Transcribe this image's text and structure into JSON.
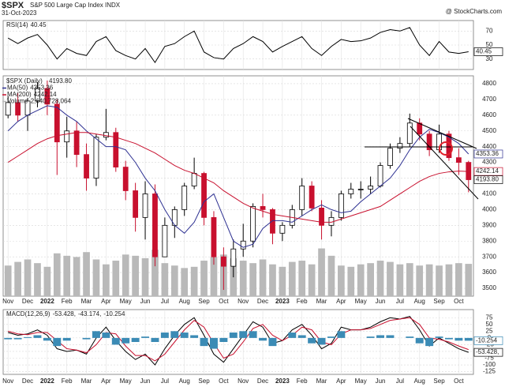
{
  "header": {
    "symbol": "$SPX",
    "name": "S&P 500 Large Cap Index INDX",
    "date": "31-Oct-2023",
    "source": "@ StockCharts.com"
  },
  "chart_data": [
    {
      "type": "line",
      "ylim": [
        15,
        85
      ],
      "yticks": [
        30,
        50,
        70
      ],
      "series": [
        {
          "name": "RSI(14)",
          "label": "40.45",
          "box": true,
          "color": "#000000",
          "values": [
            60,
            52,
            60,
            65,
            50,
            30,
            45,
            38,
            35,
            55,
            62,
            42,
            35,
            30,
            45,
            25,
            48,
            52,
            62,
            70,
            40,
            32,
            30,
            45,
            52,
            62,
            55,
            40,
            48,
            55,
            62,
            45,
            35,
            48,
            58,
            55,
            56,
            60,
            68,
            72,
            70,
            75,
            50,
            35,
            55,
            40,
            38,
            40.45
          ]
        }
      ]
    },
    {
      "type": "candlestick",
      "name": "$SPX (Daily)",
      "label": "4193.80",
      "up_color": "#000000",
      "down_color": "#c8102e",
      "categories": [
        "Nov",
        null,
        "Dec",
        null,
        "2022",
        null,
        "Feb",
        null,
        "Mar",
        null,
        "Apr",
        null,
        "May",
        null,
        "Jun",
        null,
        "Jul",
        null,
        "Aug",
        null,
        "Sep",
        null,
        "Oct",
        null,
        "Nov",
        null,
        "Dec",
        null,
        "2023",
        null,
        "Feb",
        null,
        "Mar",
        null,
        "Apr",
        null,
        "May",
        null,
        "Jun",
        null,
        "Jul",
        null,
        "Aug",
        null,
        "Sep",
        null,
        "Oct",
        null
      ],
      "open": [
        4600,
        4680,
        4600,
        4690,
        4770,
        4670,
        4430,
        4500,
        4350,
        4200,
        4460,
        4490,
        4270,
        4120,
        3950,
        4100,
        3700,
        3900,
        4000,
        4150,
        4230,
        3950,
        3700,
        3640,
        3750,
        3800,
        4020,
        4000,
        3850,
        3900,
        4000,
        4150,
        4010,
        3900,
        3950,
        4100,
        4130,
        4130,
        4150,
        4280,
        4390,
        4420,
        4550,
        4480,
        4380,
        4480,
        4330,
        4300
      ],
      "high": [
        4720,
        4740,
        4710,
        4810,
        4820,
        4700,
        4590,
        4560,
        4420,
        4480,
        4640,
        4520,
        4310,
        4170,
        4180,
        4160,
        3950,
        4020,
        4170,
        4330,
        4240,
        3990,
        3760,
        3810,
        3910,
        4040,
        4100,
        4010,
        3920,
        4030,
        4200,
        4180,
        4060,
        3990,
        4120,
        4170,
        4180,
        4210,
        4300,
        4420,
        4460,
        4610,
        4580,
        4500,
        4540,
        4500,
        4390,
        4310
      ],
      "low": [
        4580,
        4560,
        4500,
        4650,
        4600,
        4220,
        4330,
        4270,
        4120,
        4150,
        4440,
        4240,
        4060,
        3860,
        3810,
        3640,
        3700,
        3820,
        3960,
        4130,
        3900,
        3650,
        3490,
        3570,
        3700,
        3760,
        3950,
        3780,
        3800,
        3880,
        3960,
        3990,
        3810,
        3830,
        3930,
        4070,
        4070,
        4100,
        4140,
        4260,
        4360,
        4400,
        4440,
        4340,
        4360,
        4310,
        4220,
        4110
      ],
      "close": [
        4680,
        4600,
        4690,
        4770,
        4670,
        4430,
        4500,
        4350,
        4200,
        4460,
        4490,
        4270,
        4120,
        3950,
        4100,
        3700,
        3900,
        4000,
        4150,
        4230,
        3950,
        3700,
        3640,
        3750,
        3800,
        4020,
        4000,
        3850,
        3900,
        4000,
        4150,
        4010,
        3900,
        3950,
        4100,
        4130,
        4130,
        4150,
        4280,
        4390,
        4420,
        4550,
        4480,
        4380,
        4480,
        4330,
        4300,
        4190
      ],
      "ylim": [
        3450,
        4850
      ],
      "yticks": [
        3500,
        3600,
        3700,
        3800,
        3900,
        4000,
        4100,
        4200,
        4300,
        4400,
        4500,
        4600,
        4700,
        4800
      ],
      "y2lim": [
        0,
        18000000000
      ],
      "series": [
        {
          "name": "MA(50)",
          "label": "4353.36",
          "box": true,
          "color": "#2e3192",
          "type": "line",
          "values": [
            4500,
            4560,
            4600,
            4630,
            4660,
            4650,
            4600,
            4560,
            4500,
            4450,
            4400,
            4400,
            4380,
            4300,
            4200,
            4120,
            4000,
            3900,
            3850,
            3920,
            4050,
            4100,
            3950,
            3800,
            3760,
            3780,
            3880,
            3930,
            3930,
            3920,
            3960,
            4000,
            4030,
            4000,
            3980,
            3990,
            4050,
            4100,
            4150,
            4200,
            4280,
            4380,
            4460,
            4510,
            4490,
            4460,
            4420,
            4353.36
          ]
        },
        {
          "name": "MA(200)",
          "label": "4242.14",
          "box": true,
          "color": "#c8102e",
          "type": "line",
          "values": [
            4300,
            4340,
            4380,
            4420,
            4450,
            4470,
            4480,
            4490,
            4490,
            4480,
            4470,
            4460,
            4440,
            4420,
            4390,
            4360,
            4320,
            4280,
            4250,
            4230,
            4200,
            4170,
            4120,
            4080,
            4040,
            4010,
            3990,
            3970,
            3960,
            3950,
            3940,
            3930,
            3920,
            3920,
            3940,
            3960,
            3980,
            4000,
            4020,
            4060,
            4100,
            4140,
            4180,
            4210,
            4230,
            4240,
            4245,
            4242.14
          ]
        },
        {
          "name": "Volume",
          "label": "2,640,728,064",
          "color": "#b9b9b9",
          "type": "bar",
          "axis": "y2",
          "values": [
            2500000000,
            2800000000,
            3000000000,
            2700000000,
            2400000000,
            3500000000,
            3300000000,
            3200000000,
            3600000000,
            3000000000,
            2600000000,
            2900000000,
            3400000000,
            3300000000,
            3100000000,
            3800000000,
            2700000000,
            2500000000,
            2300000000,
            2400000000,
            2900000000,
            3200000000,
            3400000000,
            3100000000,
            2900000000,
            2700000000,
            3000000000,
            2600000000,
            2400000000,
            2800000000,
            2900000000,
            2600000000,
            3900000000,
            3300000000,
            2500000000,
            2400000000,
            2600000000,
            2700000000,
            2900000000,
            2800000000,
            2600000000,
            2700000000,
            2500000000,
            2600000000,
            2500000000,
            2600000000,
            2700000000,
            2640728064
          ]
        }
      ]
    },
    {
      "type": "line",
      "ylim": [
        -135,
        105
      ],
      "yticks": [
        75,
        50,
        25,
        0,
        -25,
        -50,
        -75,
        -100,
        -125
      ],
      "series": [
        {
          "name": "MACD(12,26,9)",
          "label": "-53.428,",
          "box": true,
          "color": "#000000",
          "type": "line",
          "values": [
            20,
            10,
            15,
            30,
            10,
            -40,
            -50,
            -45,
            -60,
            0,
            40,
            -10,
            -50,
            -80,
            -60,
            -100,
            -40,
            10,
            50,
            75,
            10,
            -60,
            -90,
            -40,
            10,
            60,
            40,
            -20,
            -10,
            30,
            50,
            10,
            -40,
            -20,
            40,
            30,
            30,
            40,
            60,
            75,
            70,
            80,
            30,
            -30,
            0,
            -20,
            -40,
            -53.428
          ]
        },
        {
          "label": "-43.174,",
          "color": "#c8102e",
          "type": "line",
          "values": [
            25,
            15,
            12,
            20,
            20,
            -10,
            -40,
            -45,
            -55,
            -25,
            20,
            15,
            -30,
            -65,
            -65,
            -85,
            -60,
            -15,
            30,
            65,
            40,
            -20,
            -75,
            -60,
            -15,
            35,
            50,
            10,
            -10,
            10,
            40,
            30,
            -15,
            -25,
            15,
            30,
            30,
            35,
            50,
            65,
            70,
            75,
            50,
            0,
            -5,
            -15,
            -30,
            -43.174
          ]
        },
        {
          "label": "-10.254",
          "box": true,
          "color": "#3b8bb5",
          "type": "bar",
          "values": [
            -5,
            -5,
            3,
            10,
            -10,
            -30,
            -10,
            0,
            -5,
            25,
            20,
            -25,
            -20,
            -15,
            5,
            -15,
            20,
            25,
            20,
            10,
            -30,
            -40,
            -15,
            20,
            25,
            25,
            -10,
            -30,
            0,
            20,
            10,
            -20,
            -25,
            5,
            25,
            0,
            0,
            5,
            10,
            10,
            0,
            5,
            -20,
            -30,
            5,
            -5,
            -10,
            -10.254
          ]
        }
      ]
    }
  ]
}
